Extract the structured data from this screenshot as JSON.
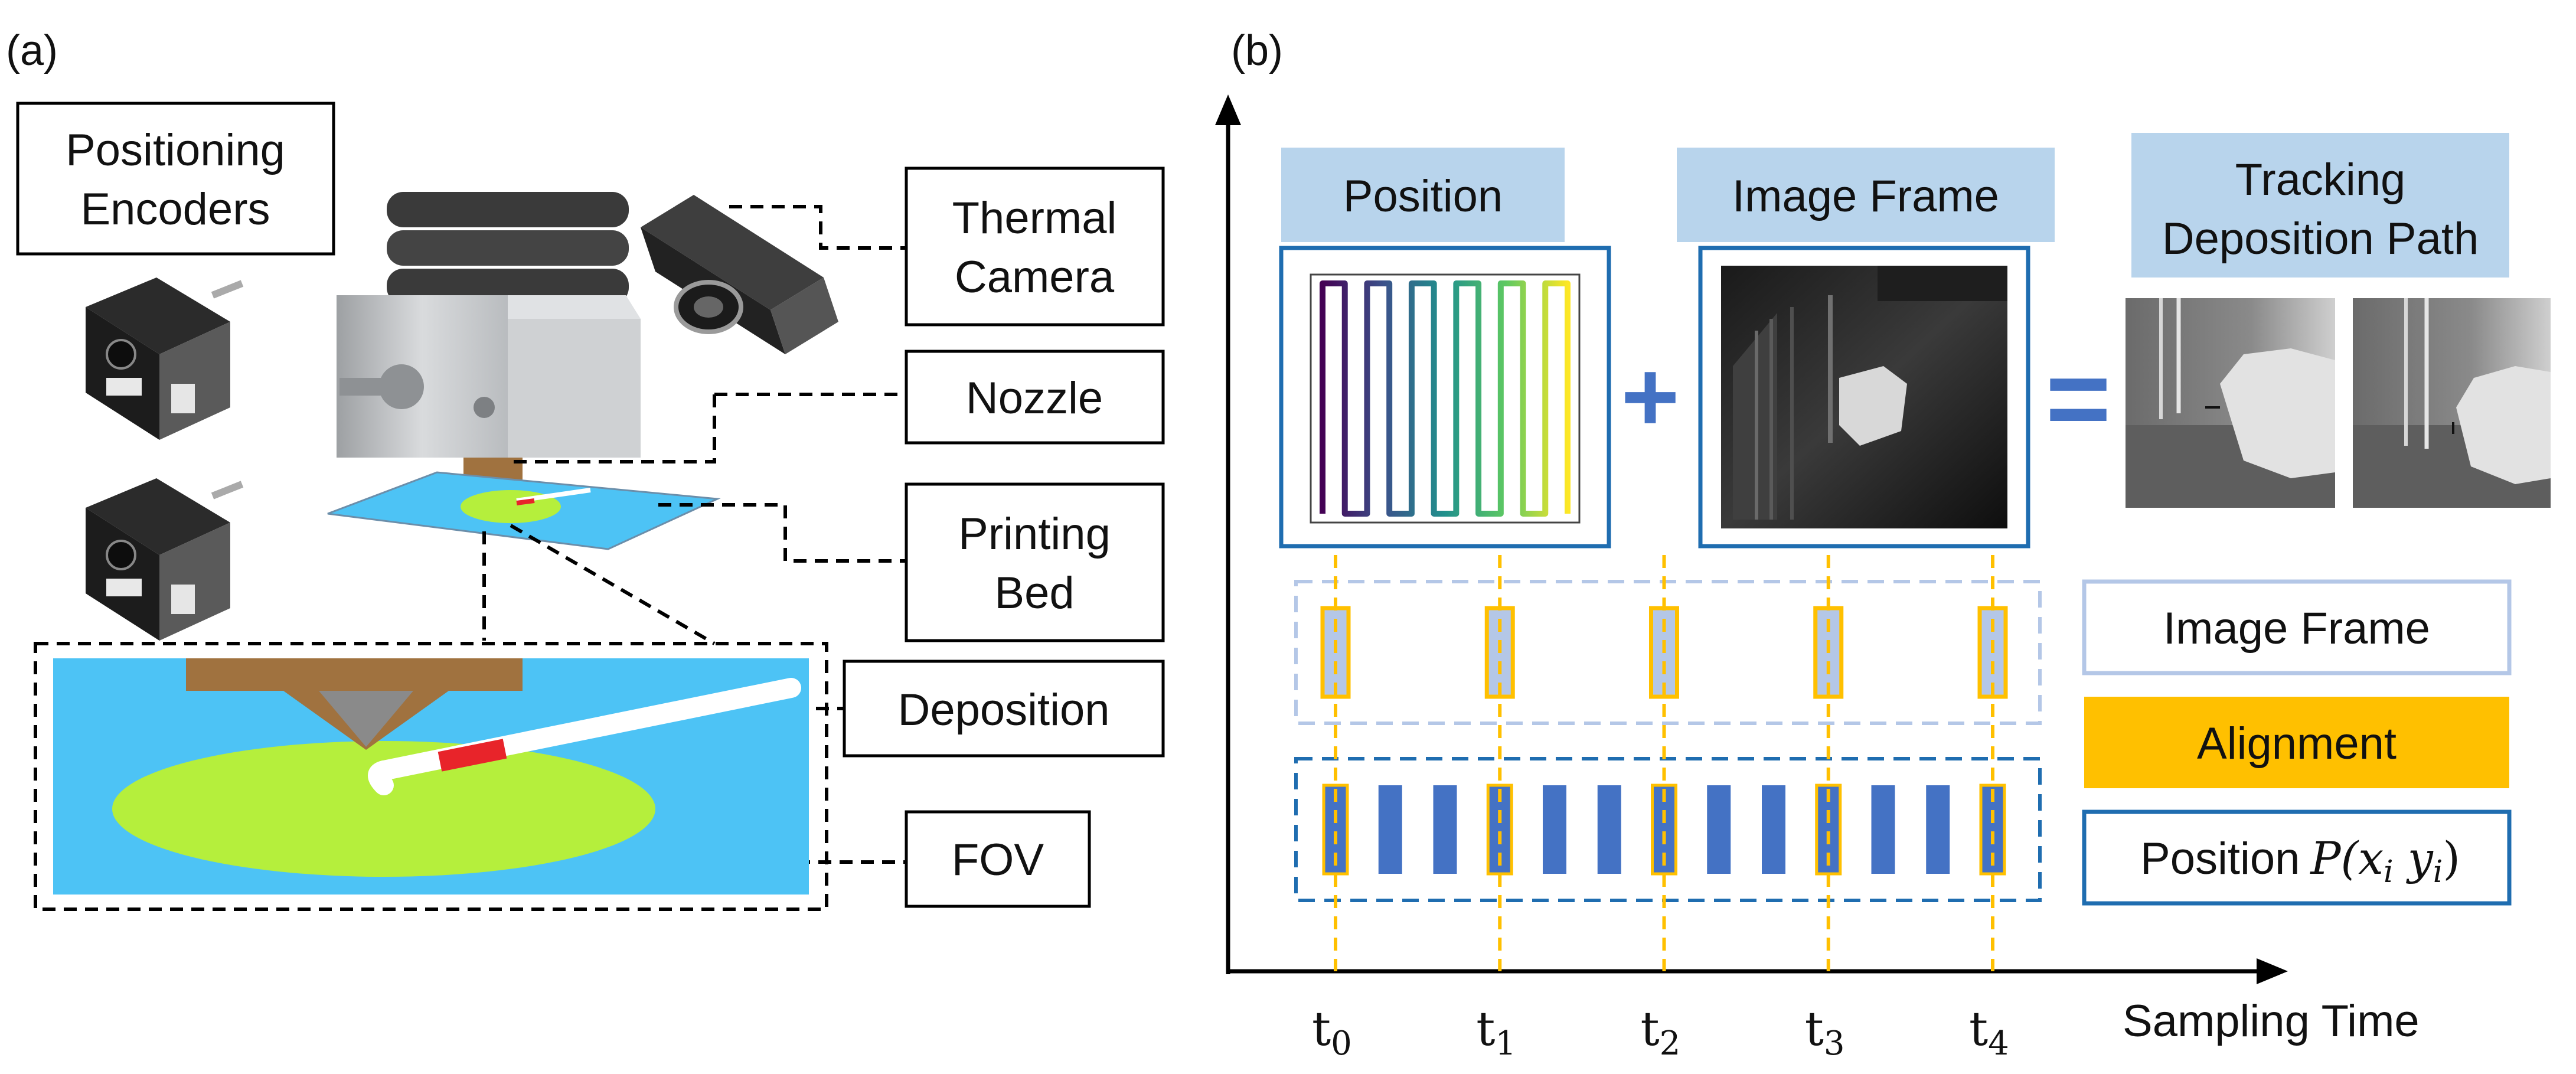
{
  "panel_a": {
    "panel_label": "(a)",
    "encoders_label": [
      "Positioning",
      "Encoders"
    ],
    "callouts": {
      "thermal_camera": [
        "Thermal",
        "Camera"
      ],
      "nozzle": "Nozzle",
      "printing_bed": [
        "Printing",
        "Bed"
      ],
      "deposition": "Deposition",
      "fov": "FOV"
    },
    "colors": {
      "bed": "#4dc3f5",
      "fov": "#b5ef3c",
      "deposit_red": "#e8242a",
      "nozzle_brown": "#9a6b3c"
    }
  },
  "panel_b": {
    "panel_label": "(b)",
    "headers": {
      "position": "Position",
      "image_frame": "Image Frame",
      "tracking": [
        "Tracking",
        "Deposition Path"
      ]
    },
    "operators": {
      "plus": "+",
      "equals": "="
    },
    "legend": {
      "image_frame": "Image Frame",
      "alignment": "Alignment",
      "position_prefix": "Position",
      "position_math": "P(x",
      "position_sub_i": "i",
      "position_math_y": " y",
      "position_close": ")"
    },
    "x_axis_label": "Sampling Time",
    "time_ticks": [
      {
        "t": "t",
        "sub": "0"
      },
      {
        "t": "t",
        "sub": "1"
      },
      {
        "t": "t",
        "sub": "2"
      },
      {
        "t": "t",
        "sub": "3"
      },
      {
        "t": "t",
        "sub": "4"
      }
    ],
    "position_bar_count": 13,
    "colors": {
      "header_fill": "#b8d4ec",
      "frame_border": "#1f6db0",
      "position_bar": "#4472c4",
      "alignment": "#ffc000",
      "image_frame_light": "#b4c7e7",
      "plus_equals": "#4472c4"
    }
  }
}
